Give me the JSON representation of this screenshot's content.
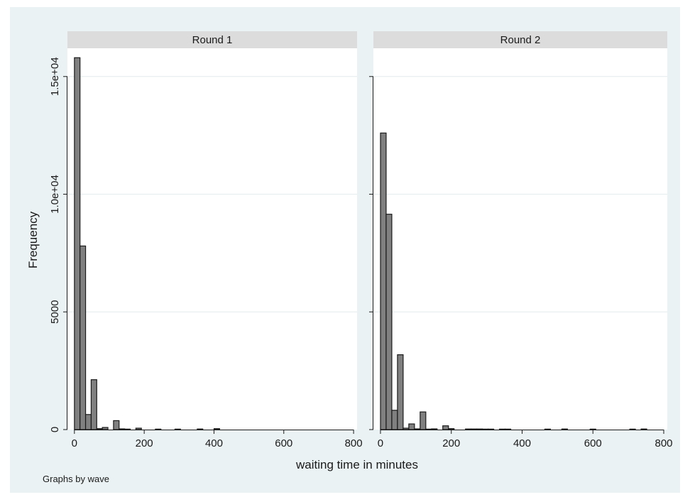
{
  "chart_data": {
    "type": "bar",
    "ylabel": "Frequency",
    "xlabel": "waiting time in minutes",
    "note": "Graphs by wave",
    "xlim": [
      -20,
      810
    ],
    "ylim": [
      0,
      16200
    ],
    "x_ticks": [
      0,
      200,
      400,
      600,
      800
    ],
    "y_ticks": [
      0,
      5000,
      10000,
      15000
    ],
    "y_tick_labels": [
      "0",
      "5000",
      "1.0e+04",
      "1.5e+04"
    ],
    "grid": true,
    "bar_width": 16,
    "colors": {
      "bar_fill": "#808080",
      "bar_stroke": "#1a1a1a",
      "outer_bg": "#eaf2f3",
      "plot_bg": "#ffffff",
      "strip_bg": "#dcdcdc",
      "grid": "#e4ecee"
    },
    "panels": [
      {
        "title": "Round 1",
        "x": [
          8,
          24,
          40,
          56,
          72,
          88,
          120,
          136,
          152,
          184,
          240,
          296,
          360,
          408
        ],
        "values": [
          15800,
          7800,
          640,
          2120,
          40,
          90,
          380,
          30,
          20,
          60,
          20,
          20,
          25,
          40
        ]
      },
      {
        "title": "Round 2",
        "x": [
          8,
          24,
          40,
          56,
          72,
          88,
          104,
          120,
          136,
          152,
          184,
          200,
          248,
          264,
          280,
          296,
          312,
          344,
          360,
          472,
          520,
          600,
          712,
          744
        ],
        "values": [
          12600,
          9150,
          820,
          3180,
          60,
          240,
          30,
          750,
          20,
          30,
          160,
          40,
          25,
          25,
          25,
          20,
          20,
          20,
          20,
          20,
          25,
          20,
          20,
          25
        ]
      }
    ]
  }
}
